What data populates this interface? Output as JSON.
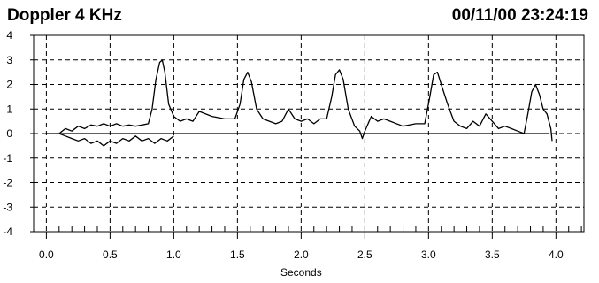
{
  "header": {
    "title": "Doppler 4 KHz",
    "timestamp": "00/11/00 23:24:19"
  },
  "chart_data": {
    "type": "line",
    "title": "Doppler 4 KHz",
    "xlabel": "Seconds",
    "ylabel": "",
    "xlim": [
      -0.1,
      4.22
    ],
    "ylim": [
      -4,
      4
    ],
    "xticks": [
      0.0,
      0.5,
      1.0,
      1.5,
      2.0,
      2.5,
      3.0,
      3.5,
      4.0
    ],
    "xtick_labels": [
      "0.0",
      "0.5",
      "1.0",
      "1.5",
      "2.0",
      "2.5",
      "3.0",
      "3.5",
      "4.0"
    ],
    "yticks": [
      4,
      3,
      2,
      1,
      0,
      -1,
      -2,
      -3,
      -4
    ],
    "ytick_labels": [
      "4",
      "3",
      "2",
      "1",
      "0",
      "-1",
      "-2",
      "-3",
      "-4"
    ],
    "grid": true,
    "grid_style": "dashed",
    "colors": {
      "line": "#000000",
      "grid": "#000000",
      "background": "#ffffff"
    },
    "baseline": {
      "y": 0,
      "x_range": [
        0.0,
        3.95
      ]
    },
    "series": [
      {
        "points": [
          [
            0.1,
            0.0
          ],
          [
            0.15,
            0.2
          ],
          [
            0.2,
            0.1
          ],
          [
            0.25,
            0.3
          ],
          [
            0.3,
            0.2
          ],
          [
            0.35,
            0.35
          ],
          [
            0.4,
            0.3
          ],
          [
            0.45,
            0.4
          ],
          [
            0.5,
            0.3
          ],
          [
            0.55,
            0.4
          ],
          [
            0.6,
            0.3
          ],
          [
            0.65,
            0.35
          ],
          [
            0.7,
            0.3
          ],
          [
            0.75,
            0.35
          ],
          [
            0.8,
            0.4
          ],
          [
            0.83,
            1.0
          ],
          [
            0.86,
            2.2
          ],
          [
            0.89,
            2.9
          ],
          [
            0.91,
            3.0
          ],
          [
            0.93,
            2.5
          ],
          [
            0.96,
            1.2
          ],
          [
            1.0,
            0.7
          ],
          [
            1.05,
            0.5
          ],
          [
            1.1,
            0.6
          ],
          [
            1.15,
            0.5
          ],
          [
            1.2,
            0.9
          ],
          [
            1.3,
            0.7
          ],
          [
            1.4,
            0.6
          ],
          [
            1.48,
            0.6
          ],
          [
            1.52,
            1.2
          ],
          [
            1.55,
            2.2
          ],
          [
            1.58,
            2.5
          ],
          [
            1.61,
            2.1
          ],
          [
            1.65,
            1.0
          ],
          [
            1.7,
            0.6
          ],
          [
            1.75,
            0.5
          ],
          [
            1.8,
            0.4
          ],
          [
            1.85,
            0.5
          ],
          [
            1.9,
            1.0
          ],
          [
            1.95,
            0.6
          ],
          [
            2.0,
            0.5
          ],
          [
            2.05,
            0.6
          ],
          [
            2.1,
            0.4
          ],
          [
            2.15,
            0.6
          ],
          [
            2.2,
            0.6
          ],
          [
            2.24,
            1.5
          ],
          [
            2.27,
            2.4
          ],
          [
            2.3,
            2.6
          ],
          [
            2.33,
            2.2
          ],
          [
            2.37,
            1.0
          ],
          [
            2.42,
            0.3
          ],
          [
            2.46,
            0.1
          ],
          [
            2.48,
            -0.2
          ],
          [
            2.5,
            0.1
          ],
          [
            2.55,
            0.7
          ],
          [
            2.6,
            0.5
          ],
          [
            2.65,
            0.6
          ],
          [
            2.7,
            0.5
          ],
          [
            2.8,
            0.3
          ],
          [
            2.9,
            0.4
          ],
          [
            2.97,
            0.4
          ],
          [
            3.01,
            1.5
          ],
          [
            3.04,
            2.4
          ],
          [
            3.07,
            2.5
          ],
          [
            3.1,
            2.0
          ],
          [
            3.15,
            1.2
          ],
          [
            3.2,
            0.5
          ],
          [
            3.25,
            0.3
          ],
          [
            3.3,
            0.2
          ],
          [
            3.35,
            0.5
          ],
          [
            3.4,
            0.3
          ],
          [
            3.45,
            0.8
          ],
          [
            3.5,
            0.5
          ],
          [
            3.55,
            0.2
          ],
          [
            3.6,
            0.3
          ],
          [
            3.65,
            0.2
          ],
          [
            3.7,
            0.1
          ],
          [
            3.75,
            0.0
          ],
          [
            3.78,
            0.8
          ],
          [
            3.81,
            1.7
          ],
          [
            3.84,
            2.0
          ],
          [
            3.87,
            1.6
          ],
          [
            3.9,
            1.0
          ],
          [
            3.93,
            0.8
          ],
          [
            3.96,
            0.2
          ],
          [
            3.97,
            -0.3
          ]
        ]
      },
      {
        "points": [
          [
            0.1,
            0.0
          ],
          [
            0.15,
            -0.1
          ],
          [
            0.2,
            -0.2
          ],
          [
            0.25,
            -0.3
          ],
          [
            0.3,
            -0.2
          ],
          [
            0.35,
            -0.4
          ],
          [
            0.4,
            -0.3
          ],
          [
            0.45,
            -0.5
          ],
          [
            0.5,
            -0.3
          ],
          [
            0.55,
            -0.4
          ],
          [
            0.6,
            -0.2
          ],
          [
            0.65,
            -0.3
          ],
          [
            0.7,
            -0.1
          ],
          [
            0.75,
            -0.3
          ],
          [
            0.8,
            -0.2
          ],
          [
            0.85,
            -0.4
          ],
          [
            0.9,
            -0.2
          ],
          [
            0.95,
            -0.3
          ],
          [
            1.0,
            -0.1
          ]
        ]
      }
    ]
  }
}
